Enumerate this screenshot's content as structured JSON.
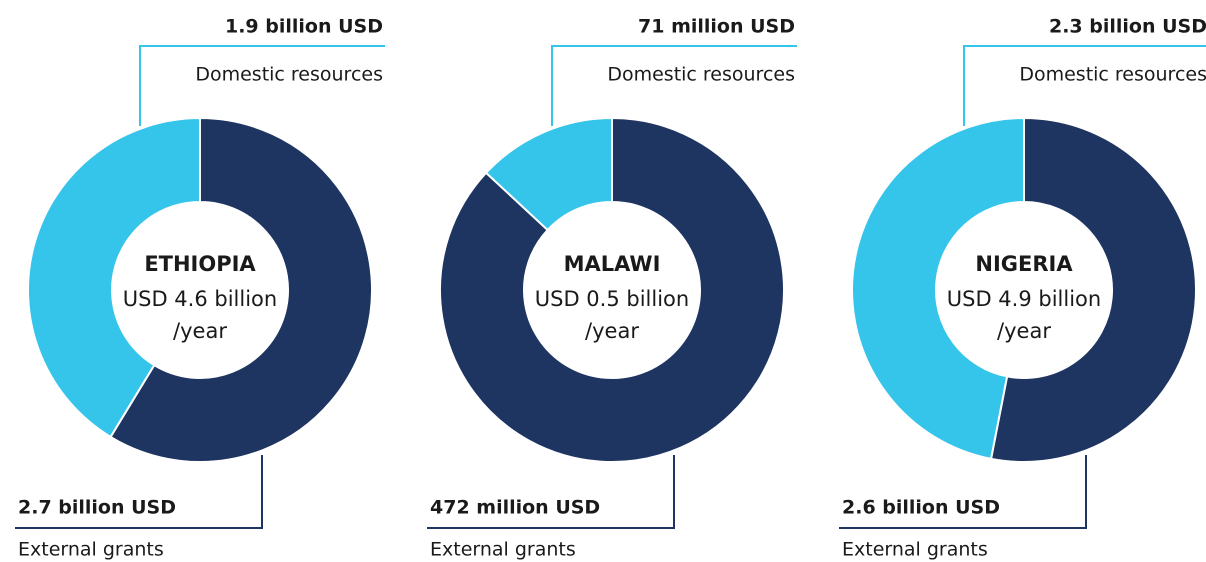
{
  "chart_data": [
    {
      "type": "pie",
      "donut": true,
      "title": "ETHIOPIA",
      "center_lines": [
        "USD 4.6 billion",
        "/year"
      ],
      "categories": [
        "Domestic resources",
        "External grants"
      ],
      "values": [
        1900000000,
        2700000000
      ],
      "value_labels": [
        "1.9 billion USD",
        "2.7 billion USD"
      ],
      "colors": [
        "#35c4ea",
        "#1e3461"
      ]
    },
    {
      "type": "pie",
      "donut": true,
      "title": "MALAWI",
      "center_lines": [
        "USD 0.5 billion",
        "/year"
      ],
      "categories": [
        "Domestic resources",
        "External grants"
      ],
      "values": [
        71000000,
        472000000
      ],
      "value_labels": [
        "71 million USD",
        "472 million USD"
      ],
      "colors": [
        "#35c4ea",
        "#1e3461"
      ]
    },
    {
      "type": "pie",
      "donut": true,
      "title": "NIGERIA",
      "center_lines": [
        "USD 4.9 billion",
        "/year"
      ],
      "categories": [
        "Domestic resources",
        "External grants"
      ],
      "values": [
        2300000000,
        2600000000
      ],
      "value_labels": [
        "2.3 billion USD",
        "2.6 billion USD"
      ],
      "colors": [
        "#35c4ea",
        "#1e3461"
      ]
    }
  ]
}
